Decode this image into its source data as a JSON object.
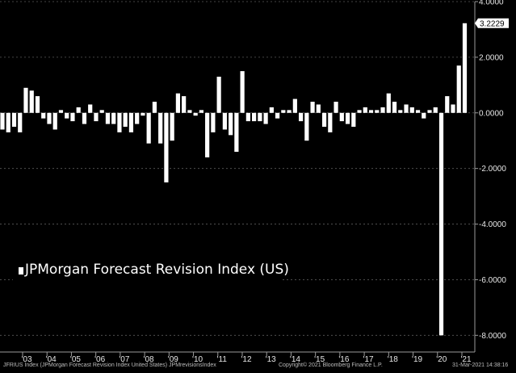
{
  "chart_data": {
    "type": "bar",
    "title": "",
    "xlabel": "",
    "ylabel": "",
    "ylim": [
      -8.6,
      4.0
    ],
    "y_ticks": [
      4.0,
      2.0,
      0.0,
      -2.0,
      -4.0,
      -6.0,
      -8.0
    ],
    "y_tick_labels": [
      "4.0000",
      "2.0000",
      "0.0000",
      "-2.0000",
      "-4.0000",
      "-6.0000",
      "-8.0000"
    ],
    "x_tick_labels": [
      "'03",
      "'04",
      "'05",
      "'06",
      "'07",
      "'08",
      "'09",
      "'10",
      "'11",
      "'12",
      "'13",
      "'14",
      "'15",
      "'16",
      "'17",
      "'18",
      "'19",
      "'20",
      "'21"
    ],
    "last_value_label": "3.2229",
    "legend_position": "bottom-left",
    "grid": "horizontal dashed",
    "bar_color": "#ffffff",
    "series": [
      {
        "name": "JPMorgan Forecast Revision Index (US)",
        "values": [
          -0.6,
          -0.7,
          -0.5,
          -0.7,
          0.9,
          0.8,
          0.6,
          -0.2,
          -0.4,
          -0.6,
          0.1,
          -0.2,
          -0.3,
          0.2,
          -0.4,
          0.3,
          -0.3,
          0.1,
          -0.4,
          -0.4,
          -0.7,
          -0.5,
          -0.7,
          -0.4,
          -0.1,
          -1.1,
          0.4,
          -1.1,
          -2.5,
          -1.0,
          0.7,
          0.6,
          0.1,
          -0.1,
          0.1,
          -1.6,
          -0.7,
          1.3,
          -0.6,
          -0.8,
          -1.4,
          1.5,
          -0.3,
          -0.3,
          -0.3,
          -0.4,
          0.2,
          -0.2,
          0.1,
          0.1,
          0.5,
          -0.3,
          -1.0,
          0.4,
          0.3,
          -0.5,
          -0.7,
          0.4,
          -0.3,
          -0.4,
          -0.5,
          0.1,
          0.2,
          0.1,
          0.1,
          0.2,
          0.7,
          0.4,
          0.1,
          0.3,
          0.2,
          0.1,
          -0.2,
          0.1,
          0.2,
          -8.0,
          0.6,
          0.3,
          1.7,
          3.2229
        ]
      }
    ],
    "footer_left": "JFRIUS Index (JPMorgan Forecast Revision Index United States) JPMrevisionsIndex",
    "footer_mid": "Copyright© 2021 Bloomberg Finance L.P.",
    "footer_right": "31-Mar-2021 14:38:16"
  }
}
